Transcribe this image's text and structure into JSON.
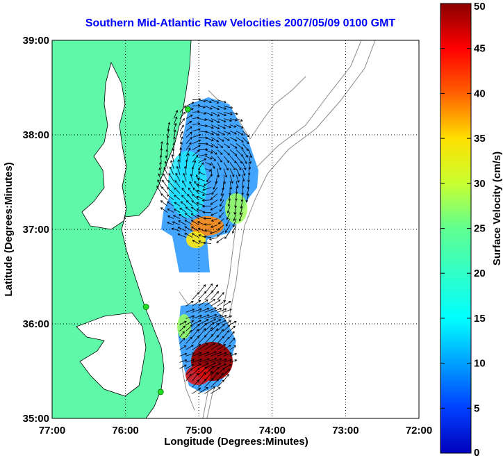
{
  "chart_data": {
    "type": "heatmap",
    "subtype": "vector-field map",
    "title": "Southern Mid-Atlantic Raw Velocities 2007/05/09 0100 GMT",
    "xlabel": "Longitude (Degrees:Minutes)",
    "ylabel": "Latitude (Degrees:Minutes)",
    "x_ticks": [
      "77:00",
      "76:00",
      "75:00",
      "74:00",
      "73:00",
      "72:00"
    ],
    "y_ticks": [
      "39:00",
      "38:00",
      "37:00",
      "36:00",
      "35:00"
    ],
    "x_range_deg_west": [
      77,
      72
    ],
    "y_range_deg_north": [
      35,
      39
    ],
    "grid": "dotted",
    "colorbar": {
      "label": "Surface Velocity (cm/s)",
      "min": 0,
      "max": 50,
      "ticks": [
        "0",
        "5",
        "10",
        "15",
        "20",
        "25",
        "30",
        "35",
        "40",
        "45",
        "50"
      ],
      "colormap": "jet",
      "placement": "right"
    },
    "colors": {
      "title": "#0000ff",
      "land": "#5ff7a8",
      "coastline": "#000000",
      "bathymetry": "#8a8a8a",
      "station_marker": "#22dd22"
    },
    "stations": [
      {
        "lon": -75.15,
        "lat": 38.27
      },
      {
        "lon": -75.72,
        "lat": 36.18
      },
      {
        "lon": -75.52,
        "lat": 35.28
      }
    ],
    "velocity_regions": [
      {
        "name": "northern",
        "lon_range": [
          -75.55,
          -74.28
        ],
        "lat_range": [
          36.82,
          38.4
        ],
        "typical_speed_cm_s": 10,
        "max_speed_cm_s": 33
      },
      {
        "name": "southern",
        "lon_range": [
          -75.3,
          -74.55
        ],
        "lat_range": [
          35.2,
          36.35
        ],
        "typical_speed_cm_s": 12,
        "max_speed_cm_s": 50
      }
    ]
  }
}
